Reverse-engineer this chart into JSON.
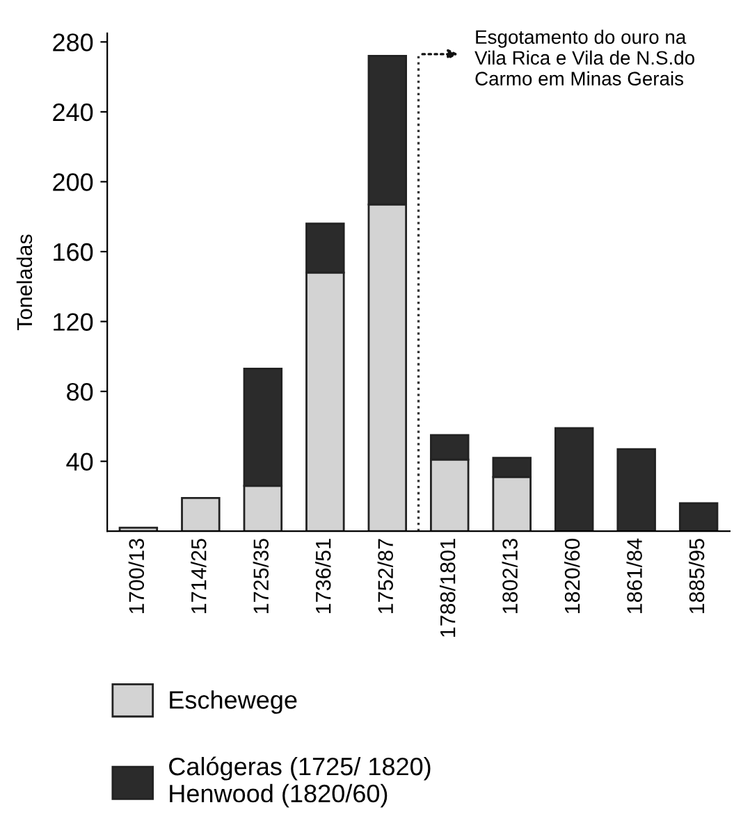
{
  "chart_data": {
    "type": "bar",
    "ylabel": "Toneladas",
    "stacked": true,
    "categories": [
      "1700/13",
      "1714/25",
      "1725/35",
      "1736/51",
      "1752/87",
      "1788/1801",
      "1802/13",
      "1820/60",
      "1861/84",
      "1885/95"
    ],
    "series": [
      {
        "name": "Eschewege",
        "color": "#d3d3d3",
        "values": [
          2,
          19,
          26,
          148,
          187,
          41,
          31,
          null,
          null,
          null
        ]
      },
      {
        "name": "Calógeras (1725/ 1820)\nHenwood (1820/60)",
        "color": "#2b2b2b",
        "values": [
          null,
          null,
          67,
          28,
          85,
          14,
          11,
          59,
          47,
          16
        ]
      }
    ],
    "ylim": [
      0,
      285
    ],
    "yticks": [
      40,
      80,
      120,
      160,
      200,
      240,
      280
    ],
    "grid": false,
    "legend": "bottom",
    "annotations": [
      "Esgotamento do ouro na\nVila Rica e Vila de N.S.do\nCarmo em Minas Gerais"
    ]
  }
}
